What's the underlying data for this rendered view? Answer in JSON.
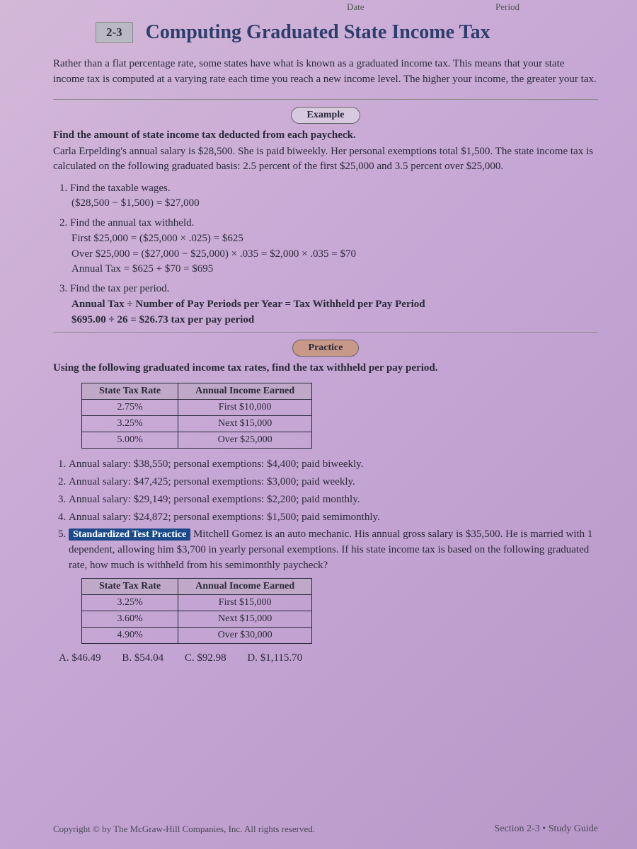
{
  "top": {
    "date_label": "Date",
    "period_label": "Period"
  },
  "header": {
    "section_number": "2-3",
    "title": "Computing Graduated State Income Tax"
  },
  "intro": "Rather than a flat percentage rate, some states have what is known as a graduated income tax. This means that your state income tax is computed at a varying rate each time you reach a new income level. The higher your income, the greater your tax.",
  "example": {
    "label": "Example",
    "heading": "Find the amount of state income tax deducted from each paycheck.",
    "setup": "Carla Erpelding's annual salary is $28,500. She is paid biweekly. Her personal exemptions total $1,500. The state income tax is calculated on the following graduated basis: 2.5 percent of the first $25,000 and 3.5 percent over $25,000.",
    "step1_title": "Find the taxable wages.",
    "step1_line": "($28,500 − $1,500) = $27,000",
    "step2_title": "Find the annual tax withheld.",
    "step2_l1": "First $25,000 = ($25,000 × .025) = $625",
    "step2_l2": "Over $25,000 = ($27,000 − $25,000) × .035 = $2,000 × .035 = $70",
    "step2_l3": "Annual Tax = $625 + $70 = $695",
    "step3_title": "Find the tax per period.",
    "step3_l1": "Annual Tax ÷ Number of Pay Periods per Year = Tax Withheld per Pay Period",
    "step3_l2": "$695.00 ÷ 26 = $26.73 tax per pay period"
  },
  "practice": {
    "label": "Practice",
    "intro": "Using the following graduated income tax rates, find the tax withheld per pay period.",
    "table1": {
      "col1": "State Tax Rate",
      "col2": "Annual Income Earned",
      "rows": [
        [
          "2.75%",
          "First $10,000"
        ],
        [
          "3.25%",
          "Next $15,000"
        ],
        [
          "5.00%",
          "Over $25,000"
        ]
      ]
    },
    "problems": [
      "Annual salary: $38,550; personal exemptions: $4,400; paid biweekly.",
      "Annual salary: $47,425; personal exemptions: $3,000; paid weekly.",
      "Annual salary: $29,149; personal exemptions: $2,200; paid monthly.",
      "Annual salary: $24,872; personal exemptions: $1,500; paid semimonthly."
    ],
    "stp_label": "Standardized Test Practice",
    "stp_text": "Mitchell Gomez is an auto mechanic. His annual gross salary is $35,500. He is married with 1 dependent, allowing him $3,700 in yearly personal exemptions. If his state income tax is based on the following graduated rate, how much is withheld from his semimonthly paycheck?",
    "table2": {
      "col1": "State Tax Rate",
      "col2": "Annual Income Earned",
      "rows": [
        [
          "3.25%",
          "First $15,000"
        ],
        [
          "3.60%",
          "Next $15,000"
        ],
        [
          "4.90%",
          "Over $30,000"
        ]
      ]
    },
    "choices": [
      {
        "letter": "A.",
        "val": "$46.49"
      },
      {
        "letter": "B.",
        "val": "$54.04"
      },
      {
        "letter": "C.",
        "val": "$92.98"
      },
      {
        "letter": "D.",
        "val": "$1,115.70"
      }
    ]
  },
  "footer": {
    "left": "Copyright © by The McGraw-Hill Companies, Inc. All rights reserved.",
    "right": "Section 2-3 • Study Guide"
  }
}
